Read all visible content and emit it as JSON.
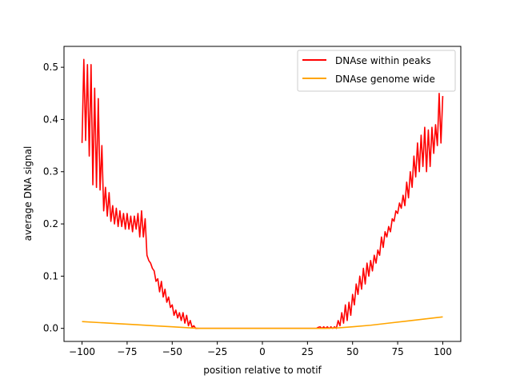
{
  "chart_data": {
    "type": "line",
    "title": "",
    "xlabel": "position relative to motif",
    "ylabel": "average DNA signal",
    "xlim": [
      -110,
      110
    ],
    "ylim": [
      -0.025,
      0.54
    ],
    "x_ticks": [
      -100,
      -75,
      -50,
      -25,
      0,
      25,
      50,
      75,
      100
    ],
    "y_ticks": [
      0.0,
      0.1,
      0.2,
      0.3,
      0.4,
      0.5
    ],
    "grid": false,
    "legend_position": "top-right",
    "series": [
      {
        "name": "DNAse within peaks",
        "color": "#ff0000",
        "points": [
          [
            -100,
            0.355
          ],
          [
            -99,
            0.515
          ],
          [
            -98,
            0.36
          ],
          [
            -97,
            0.505
          ],
          [
            -96,
            0.33
          ],
          [
            -95,
            0.505
          ],
          [
            -94,
            0.275
          ],
          [
            -93,
            0.46
          ],
          [
            -92,
            0.27
          ],
          [
            -91,
            0.44
          ],
          [
            -90,
            0.265
          ],
          [
            -89,
            0.35
          ],
          [
            -88,
            0.225
          ],
          [
            -87,
            0.27
          ],
          [
            -86,
            0.215
          ],
          [
            -85,
            0.26
          ],
          [
            -84,
            0.205
          ],
          [
            -83,
            0.235
          ],
          [
            -82,
            0.2
          ],
          [
            -81,
            0.23
          ],
          [
            -80,
            0.195
          ],
          [
            -79,
            0.225
          ],
          [
            -78,
            0.195
          ],
          [
            -77,
            0.22
          ],
          [
            -76,
            0.19
          ],
          [
            -75,
            0.22
          ],
          [
            -74,
            0.19
          ],
          [
            -73,
            0.215
          ],
          [
            -72,
            0.185
          ],
          [
            -71,
            0.215
          ],
          [
            -70,
            0.19
          ],
          [
            -69,
            0.22
          ],
          [
            -68,
            0.175
          ],
          [
            -67,
            0.225
          ],
          [
            -66,
            0.175
          ],
          [
            -65,
            0.21
          ],
          [
            -64,
            0.14
          ],
          [
            -63,
            0.13
          ],
          [
            -62,
            0.125
          ],
          [
            -61,
            0.115
          ],
          [
            -60,
            0.11
          ],
          [
            -59,
            0.09
          ],
          [
            -58,
            0.095
          ],
          [
            -57,
            0.07
          ],
          [
            -56,
            0.09
          ],
          [
            -55,
            0.06
          ],
          [
            -54,
            0.075
          ],
          [
            -53,
            0.05
          ],
          [
            -52,
            0.06
          ],
          [
            -51,
            0.04
          ],
          [
            -50,
            0.045
          ],
          [
            -49,
            0.025
          ],
          [
            -48,
            0.035
          ],
          [
            -47,
            0.02
          ],
          [
            -46,
            0.03
          ],
          [
            -45,
            0.015
          ],
          [
            -44,
            0.03
          ],
          [
            -43,
            0.01
          ],
          [
            -42,
            0.025
          ],
          [
            -41,
            0.005
          ],
          [
            -40,
            0.015
          ],
          [
            -39,
            0.002
          ],
          [
            -38,
            0.005
          ],
          [
            -37,
            0.0
          ],
          [
            -36,
            0.0
          ],
          [
            -30,
            0.0
          ],
          [
            -20,
            0.0
          ],
          [
            -10,
            0.0
          ],
          [
            0,
            0.0
          ],
          [
            10,
            0.0
          ],
          [
            20,
            0.0
          ],
          [
            30,
            0.0
          ],
          [
            31,
            0.002
          ],
          [
            32,
            0.003
          ],
          [
            33,
            0.0
          ],
          [
            34,
            0.003
          ],
          [
            35,
            0.0
          ],
          [
            36,
            0.003
          ],
          [
            37,
            0.0
          ],
          [
            38,
            0.003
          ],
          [
            39,
            0.0
          ],
          [
            40,
            0.003
          ],
          [
            41,
            0.0
          ],
          [
            42,
            0.015
          ],
          [
            43,
            0.005
          ],
          [
            44,
            0.03
          ],
          [
            45,
            0.01
          ],
          [
            46,
            0.045
          ],
          [
            47,
            0.015
          ],
          [
            48,
            0.05
          ],
          [
            49,
            0.025
          ],
          [
            50,
            0.065
          ],
          [
            51,
            0.045
          ],
          [
            52,
            0.085
          ],
          [
            53,
            0.065
          ],
          [
            54,
            0.1
          ],
          [
            55,
            0.075
          ],
          [
            56,
            0.115
          ],
          [
            57,
            0.085
          ],
          [
            58,
            0.125
          ],
          [
            59,
            0.1
          ],
          [
            60,
            0.13
          ],
          [
            61,
            0.11
          ],
          [
            62,
            0.14
          ],
          [
            63,
            0.125
          ],
          [
            64,
            0.15
          ],
          [
            65,
            0.14
          ],
          [
            66,
            0.175
          ],
          [
            67,
            0.155
          ],
          [
            68,
            0.185
          ],
          [
            69,
            0.175
          ],
          [
            70,
            0.195
          ],
          [
            71,
            0.185
          ],
          [
            72,
            0.21
          ],
          [
            73,
            0.205
          ],
          [
            74,
            0.225
          ],
          [
            75,
            0.22
          ],
          [
            76,
            0.24
          ],
          [
            77,
            0.23
          ],
          [
            78,
            0.255
          ],
          [
            79,
            0.235
          ],
          [
            80,
            0.28
          ],
          [
            81,
            0.25
          ],
          [
            82,
            0.3
          ],
          [
            83,
            0.27
          ],
          [
            84,
            0.33
          ],
          [
            85,
            0.29
          ],
          [
            86,
            0.355
          ],
          [
            87,
            0.3
          ],
          [
            88,
            0.37
          ],
          [
            89,
            0.31
          ],
          [
            90,
            0.385
          ],
          [
            91,
            0.3
          ],
          [
            92,
            0.38
          ],
          [
            93,
            0.31
          ],
          [
            94,
            0.385
          ],
          [
            95,
            0.335
          ],
          [
            96,
            0.39
          ],
          [
            97,
            0.35
          ],
          [
            98,
            0.45
          ],
          [
            99,
            0.355
          ],
          [
            100,
            0.445
          ]
        ]
      },
      {
        "name": "DNAse genome wide",
        "color": "#ffa500",
        "points": [
          [
            -100,
            0.013
          ],
          [
            -90,
            0.011
          ],
          [
            -80,
            0.009
          ],
          [
            -70,
            0.007
          ],
          [
            -60,
            0.005
          ],
          [
            -50,
            0.003
          ],
          [
            -40,
            0.001
          ],
          [
            -35,
            0.0
          ],
          [
            0,
            0.0
          ],
          [
            35,
            0.0
          ],
          [
            42,
            0.001
          ],
          [
            50,
            0.003
          ],
          [
            60,
            0.006
          ],
          [
            70,
            0.01
          ],
          [
            80,
            0.014
          ],
          [
            90,
            0.018
          ],
          [
            100,
            0.022
          ]
        ]
      }
    ]
  }
}
